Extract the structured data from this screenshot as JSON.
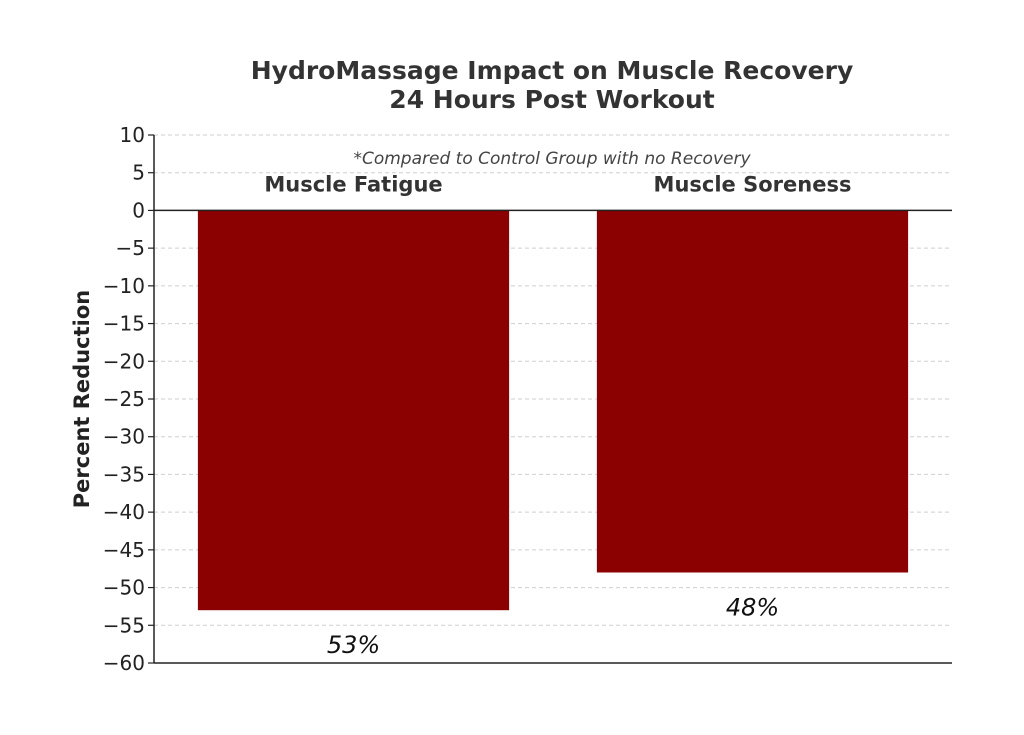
{
  "chart_data": {
    "type": "bar",
    "title": "HydroMassage Impact on Muscle Recovery",
    "subtitle": "24 Hours Post Workout",
    "note": "*Compared to Control Group with no Recovery",
    "xlabel": "",
    "ylabel": "Percent Reduction",
    "categories": [
      "Muscle Fatigue",
      "Muscle Soreness"
    ],
    "values": [
      -53,
      -48
    ],
    "data_labels": [
      "53%",
      "48%"
    ],
    "ylim": [
      -60,
      10
    ],
    "yticks": [
      10,
      5,
      0,
      -5,
      -10,
      -15,
      -20,
      -25,
      -30,
      -35,
      -40,
      -45,
      -50,
      -55,
      -60
    ],
    "ytick_labels": [
      "10",
      "5",
      "0",
      "−5",
      "−10",
      "−15",
      "−20",
      "−25",
      "−30",
      "−35",
      "−40",
      "−45",
      "−50",
      "−55",
      "−60"
    ],
    "grid": true,
    "bar_color": "#8b0000"
  }
}
